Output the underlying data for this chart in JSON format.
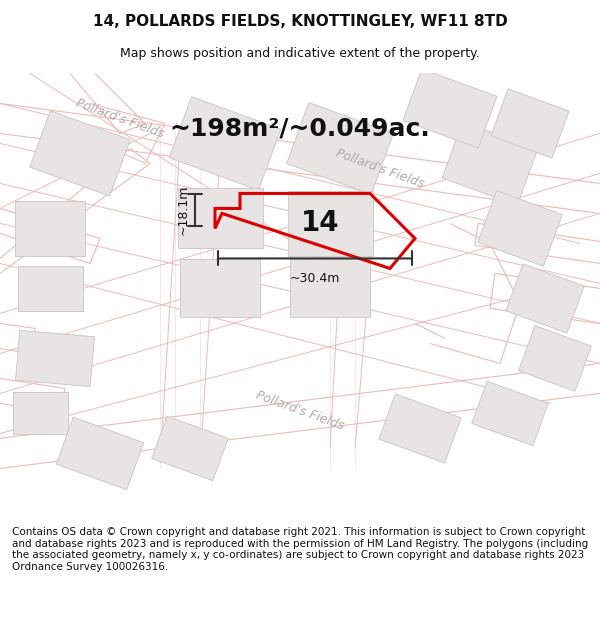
{
  "title": "14, POLLARDS FIELDS, KNOTTINGLEY, WF11 8TD",
  "subtitle": "Map shows position and indicative extent of the property.",
  "area_text": "~198m²/~0.049ac.",
  "label_14": "14",
  "dim_width": "~30.4m",
  "dim_height": "~18.1m",
  "footer": "Contains OS data © Crown copyright and database right 2021. This information is subject to Crown copyright and database rights 2023 and is reproduced with the permission of HM Land Registry. The polygons (including the associated geometry, namely x, y co-ordinates) are subject to Crown copyright and database rights 2023 Ordnance Survey 100026316.",
  "map_bg": "#f7f4f4",
  "road_fill": "#ffffff",
  "road_line_color": "#f0b8b8",
  "plot_color": "#dd0000",
  "dim_color": "#333333",
  "street_color": "#b0aaaa",
  "building_fill": "#e8e4e4",
  "building_edge": "#c8c4c4",
  "title_fontsize": 11,
  "subtitle_fontsize": 9,
  "footer_fontsize": 7.5,
  "area_fontsize": 18,
  "label_fontsize": 20,
  "dim_fontsize": 9,
  "street_fontsize": 9
}
